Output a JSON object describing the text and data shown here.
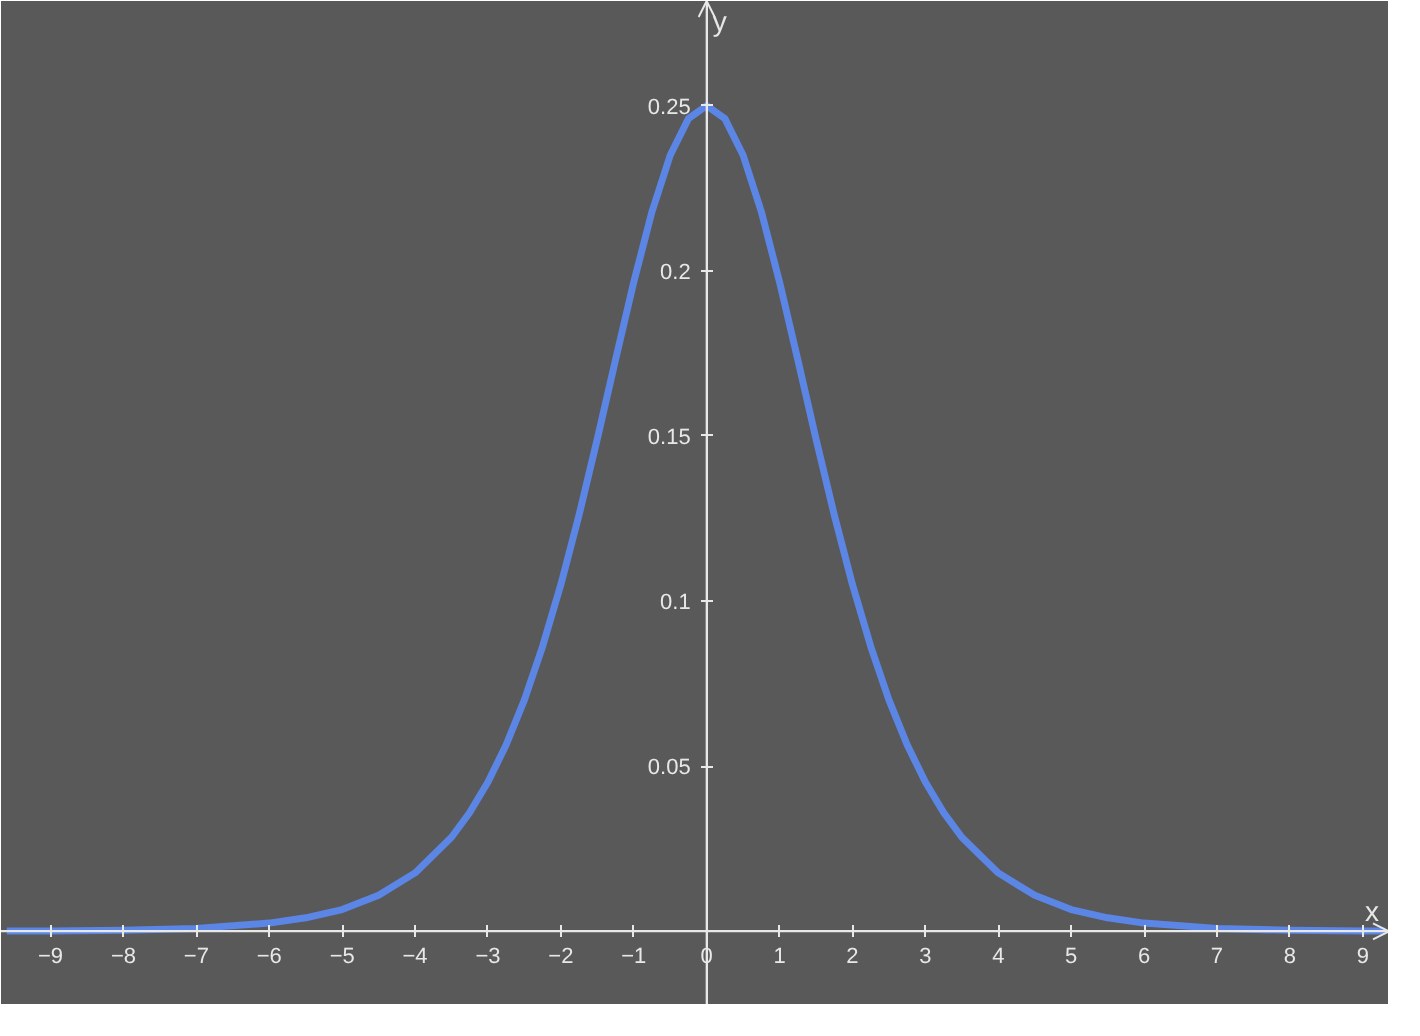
{
  "chart_data": {
    "type": "line",
    "xlabel": "x",
    "ylabel": "y",
    "x": [
      -9.6,
      -9,
      -8,
      -7,
      -6,
      -5.5,
      -5,
      -4.5,
      -4,
      -3.5,
      -3.25,
      -3,
      -2.75,
      -2.5,
      -2.25,
      -2,
      -1.75,
      -1.5,
      -1.25,
      -1,
      -0.75,
      -0.5,
      -0.25,
      0,
      0.25,
      0.5,
      0.75,
      1,
      1.25,
      1.5,
      1.75,
      2,
      2.25,
      2.5,
      2.75,
      3,
      3.25,
      3.5,
      4,
      4.5,
      5,
      5.5,
      6,
      7,
      8,
      9,
      9.3
    ],
    "series": [
      {
        "color": "#5b86e5",
        "values": [
          0.0001,
          0.0001,
          0.0003,
          0.0009,
          0.0025,
          0.0041,
          0.0066,
          0.0109,
          0.0177,
          0.0285,
          0.036,
          0.0452,
          0.0565,
          0.0701,
          0.0863,
          0.105,
          0.1261,
          0.1491,
          0.1731,
          0.1966,
          0.2179,
          0.235,
          0.2461,
          0.25,
          0.2461,
          0.235,
          0.2179,
          0.1966,
          0.1731,
          0.1491,
          0.1261,
          0.105,
          0.0863,
          0.0701,
          0.0565,
          0.0452,
          0.036,
          0.0285,
          0.0177,
          0.0109,
          0.0066,
          0.0041,
          0.0025,
          0.0009,
          0.0003,
          0.0001,
          0.0001
        ]
      }
    ],
    "xlim": [
      -9.68,
      9.36
    ],
    "ylim": [
      -0.0223,
      0.2817
    ],
    "xticks": [
      {
        "value": -9,
        "label": "−9"
      },
      {
        "value": -8,
        "label": "−8"
      },
      {
        "value": -7,
        "label": "−7"
      },
      {
        "value": -6,
        "label": "−6"
      },
      {
        "value": -5,
        "label": "−5"
      },
      {
        "value": -4,
        "label": "−4"
      },
      {
        "value": -3,
        "label": "−3"
      },
      {
        "value": -2,
        "label": "−2"
      },
      {
        "value": -1,
        "label": "−1"
      },
      0,
      1,
      2,
      3,
      4,
      5,
      6,
      7,
      8,
      9
    ],
    "yticks": [
      0.05,
      0.1,
      0.15,
      0.2,
      0.25
    ],
    "grid": false,
    "marker": "none",
    "line_style": "solid"
  }
}
